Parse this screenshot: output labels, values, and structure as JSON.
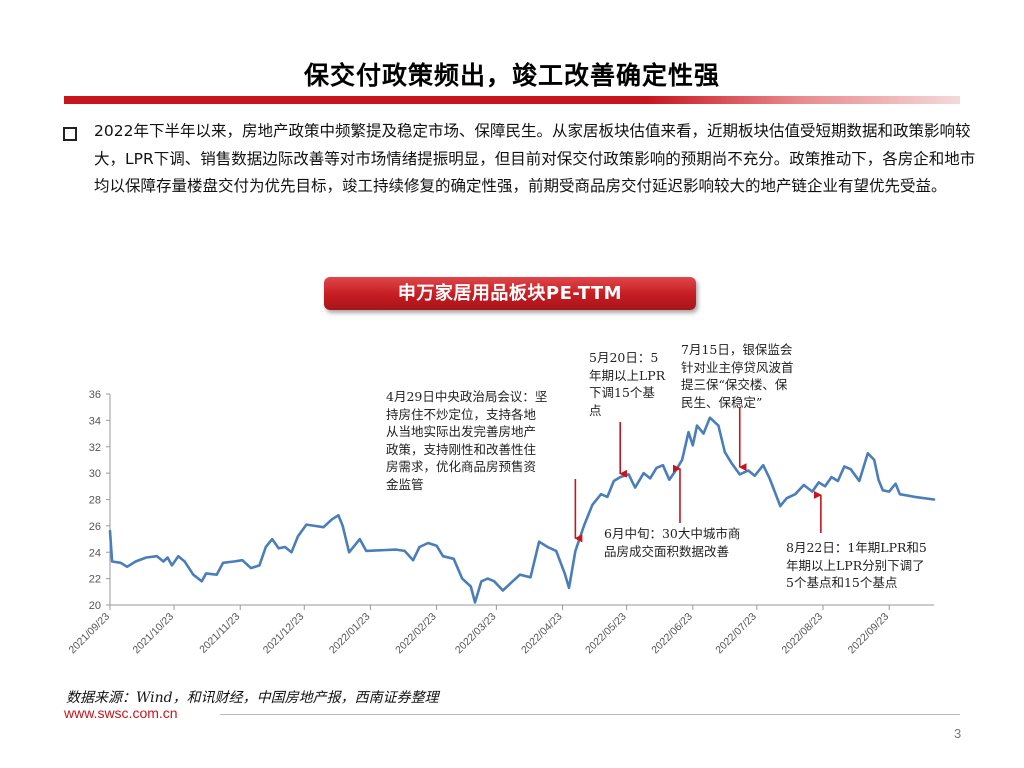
{
  "slide": {
    "title": "保交付政策频出，竣工改善确定性强",
    "bullet": "2022年下半年以来，房地产政策中频繁提及稳定市场、保障民生。从家居板块估值来看，近期板块估值受短期数据和政策影响较大，LPR下调、销售数据边际改善等对市场情绪提振明显，但目前对保交付政策影响的预期尚不充分。政策推动下，各房企和地市均以保障存量楼盘交付为优先目标，竣工持续修复的确定性强，前期受商品房交付延迟影响较大的地产链企业有望优先受益。",
    "chart_banner": "申万家居用品板块PE-TTM",
    "source": "数据来源：Wind，和讯财经，中国房地产报，西南证券整理",
    "website": "www.swsc.com.cn",
    "page_number": "3"
  },
  "annotations": {
    "apr29": "4月29日中央政治局会议：坚\n持房住不炒定位，支持各地\n从当地实际出发完善房地产\n政策，支持刚性和改善性住\n房需求，优化商品房预售资\n金监管",
    "may20": "5月20日：5\n年期以上LPR\n下调15个基\n点",
    "jul15": "7月15日，银保监会\n针对业主停贷风波首\n提三保“保交楼、保\n民生、保稳定”",
    "jun": "6月中旬：30大中城市商\n品房成交面积数据改善",
    "aug22": "8月22日：1年期LPR和5\n年期以上LPR分别下调了\n5个基点和15个基点"
  },
  "colors": {
    "line": "#4a7ebb",
    "accent_red": "#c8141c",
    "arrow": "#c8141c"
  },
  "chart_data": {
    "type": "line",
    "title": "申万家居用品板块PE-TTM",
    "xlabel": "",
    "ylabel": "",
    "ylim": [
      20,
      36
    ],
    "yticks": [
      20,
      22,
      24,
      26,
      28,
      30,
      32,
      34,
      36
    ],
    "x_range": [
      "2021-09-23",
      "2022-10-14"
    ],
    "xtick_labels": [
      "2021/09/23",
      "2021/10/23",
      "2021/11/23",
      "2021/12/23",
      "2022/01/23",
      "2022/02/23",
      "2022/03/23",
      "2022/04/23",
      "2022/05/23",
      "2022/06/23",
      "2022/07/23",
      "2022/08/23",
      "2022/09/23"
    ],
    "xtick_dates": [
      "2021-09-23",
      "2021-10-23",
      "2021-11-23",
      "2021-12-23",
      "2022-01-23",
      "2022-02-23",
      "2022-03-23",
      "2022-04-23",
      "2022-05-23",
      "2022-06-23",
      "2022-07-23",
      "2022-08-23",
      "2022-09-23"
    ],
    "grid": false,
    "series": [
      {
        "points": [
          [
            "2021-09-23",
            25.6
          ],
          [
            "2021-09-24",
            23.3
          ],
          [
            "2021-09-28",
            23.2
          ],
          [
            "2021-10-01",
            22.9
          ],
          [
            "2021-10-05",
            23.3
          ],
          [
            "2021-10-10",
            23.6
          ],
          [
            "2021-10-15",
            23.7
          ],
          [
            "2021-10-18",
            23.3
          ],
          [
            "2021-10-20",
            23.6
          ],
          [
            "2021-10-22",
            23.0
          ],
          [
            "2021-10-25",
            23.7
          ],
          [
            "2021-10-28",
            23.3
          ],
          [
            "2021-11-01",
            22.3
          ],
          [
            "2021-11-05",
            21.8
          ],
          [
            "2021-11-07",
            22.4
          ],
          [
            "2021-11-12",
            22.3
          ],
          [
            "2021-11-15",
            23.2
          ],
          [
            "2021-11-20",
            23.3
          ],
          [
            "2021-11-24",
            23.4
          ],
          [
            "2021-11-28",
            22.8
          ],
          [
            "2021-12-02",
            23.0
          ],
          [
            "2021-12-05",
            24.4
          ],
          [
            "2021-12-08",
            25.0
          ],
          [
            "2021-12-11",
            24.3
          ],
          [
            "2021-12-14",
            24.4
          ],
          [
            "2021-12-17",
            24.0
          ],
          [
            "2021-12-20",
            25.2
          ],
          [
            "2021-12-24",
            26.1
          ],
          [
            "2021-12-28",
            26.0
          ],
          [
            "2022-01-01",
            25.9
          ],
          [
            "2022-01-05",
            26.5
          ],
          [
            "2022-01-08",
            26.8
          ],
          [
            "2022-01-10",
            26.0
          ],
          [
            "2022-01-13",
            24.0
          ],
          [
            "2022-01-18",
            25.0
          ],
          [
            "2022-01-21",
            24.1
          ],
          [
            "2022-02-04",
            24.2
          ],
          [
            "2022-02-08",
            24.1
          ],
          [
            "2022-02-12",
            23.4
          ],
          [
            "2022-02-15",
            24.4
          ],
          [
            "2022-02-19",
            24.7
          ],
          [
            "2022-02-23",
            24.5
          ],
          [
            "2022-02-26",
            23.7
          ],
          [
            "2022-03-03",
            23.5
          ],
          [
            "2022-03-07",
            22.0
          ],
          [
            "2022-03-11",
            21.4
          ],
          [
            "2022-03-13",
            20.2
          ],
          [
            "2022-03-16",
            21.8
          ],
          [
            "2022-03-19",
            22.0
          ],
          [
            "2022-03-22",
            21.8
          ],
          [
            "2022-03-26",
            21.1
          ],
          [
            "2022-03-30",
            21.7
          ],
          [
            "2022-04-03",
            22.3
          ],
          [
            "2022-04-08",
            22.1
          ],
          [
            "2022-04-12",
            24.8
          ],
          [
            "2022-04-16",
            24.4
          ],
          [
            "2022-04-20",
            24.1
          ],
          [
            "2022-04-24",
            22.4
          ],
          [
            "2022-04-26",
            21.3
          ],
          [
            "2022-04-29",
            24.1
          ],
          [
            "2022-05-03",
            26.0
          ],
          [
            "2022-05-07",
            27.6
          ],
          [
            "2022-05-11",
            28.4
          ],
          [
            "2022-05-14",
            28.2
          ],
          [
            "2022-05-17",
            29.4
          ],
          [
            "2022-05-20",
            29.7
          ],
          [
            "2022-05-24",
            29.9
          ],
          [
            "2022-05-27",
            28.9
          ],
          [
            "2022-05-31",
            30.0
          ],
          [
            "2022-06-03",
            29.6
          ],
          [
            "2022-06-06",
            30.4
          ],
          [
            "2022-06-09",
            30.6
          ],
          [
            "2022-06-12",
            29.5
          ],
          [
            "2022-06-15",
            30.2
          ],
          [
            "2022-06-18",
            31.0
          ],
          [
            "2022-06-21",
            33.1
          ],
          [
            "2022-06-23",
            32.1
          ],
          [
            "2022-06-25",
            33.6
          ],
          [
            "2022-06-28",
            33.0
          ],
          [
            "2022-07-01",
            34.2
          ],
          [
            "2022-07-05",
            33.6
          ],
          [
            "2022-07-08",
            31.6
          ],
          [
            "2022-07-11",
            30.8
          ],
          [
            "2022-07-15",
            29.9
          ],
          [
            "2022-07-19",
            30.2
          ],
          [
            "2022-07-22",
            29.8
          ],
          [
            "2022-07-26",
            30.6
          ],
          [
            "2022-07-29",
            29.6
          ],
          [
            "2022-08-03",
            27.5
          ],
          [
            "2022-08-06",
            28.1
          ],
          [
            "2022-08-10",
            28.4
          ],
          [
            "2022-08-14",
            29.1
          ],
          [
            "2022-08-18",
            28.6
          ],
          [
            "2022-08-21",
            29.3
          ],
          [
            "2022-08-24",
            29.0
          ],
          [
            "2022-08-27",
            29.7
          ],
          [
            "2022-08-30",
            29.4
          ],
          [
            "2022-09-02",
            30.5
          ],
          [
            "2022-09-05",
            30.3
          ],
          [
            "2022-09-09",
            29.4
          ],
          [
            "2022-09-13",
            31.5
          ],
          [
            "2022-09-16",
            31.0
          ],
          [
            "2022-09-18",
            29.5
          ],
          [
            "2022-09-20",
            28.7
          ],
          [
            "2022-09-23",
            28.6
          ],
          [
            "2022-09-26",
            29.2
          ],
          [
            "2022-09-28",
            28.4
          ],
          [
            "2022-10-05",
            28.2
          ],
          [
            "2022-10-14",
            28.0
          ]
        ]
      }
    ],
    "event_markers": [
      {
        "date": "2022-04-29",
        "value": 24.6,
        "annotation": "apr29"
      },
      {
        "date": "2022-05-20",
        "value": 29.5,
        "annotation": "may20"
      },
      {
        "date": "2022-06-17",
        "value": 30.8,
        "annotation": "jun"
      },
      {
        "date": "2022-07-15",
        "value": 30.0,
        "annotation": "jul15"
      },
      {
        "date": "2022-08-22",
        "value": 28.8,
        "annotation": "aug22"
      }
    ]
  }
}
